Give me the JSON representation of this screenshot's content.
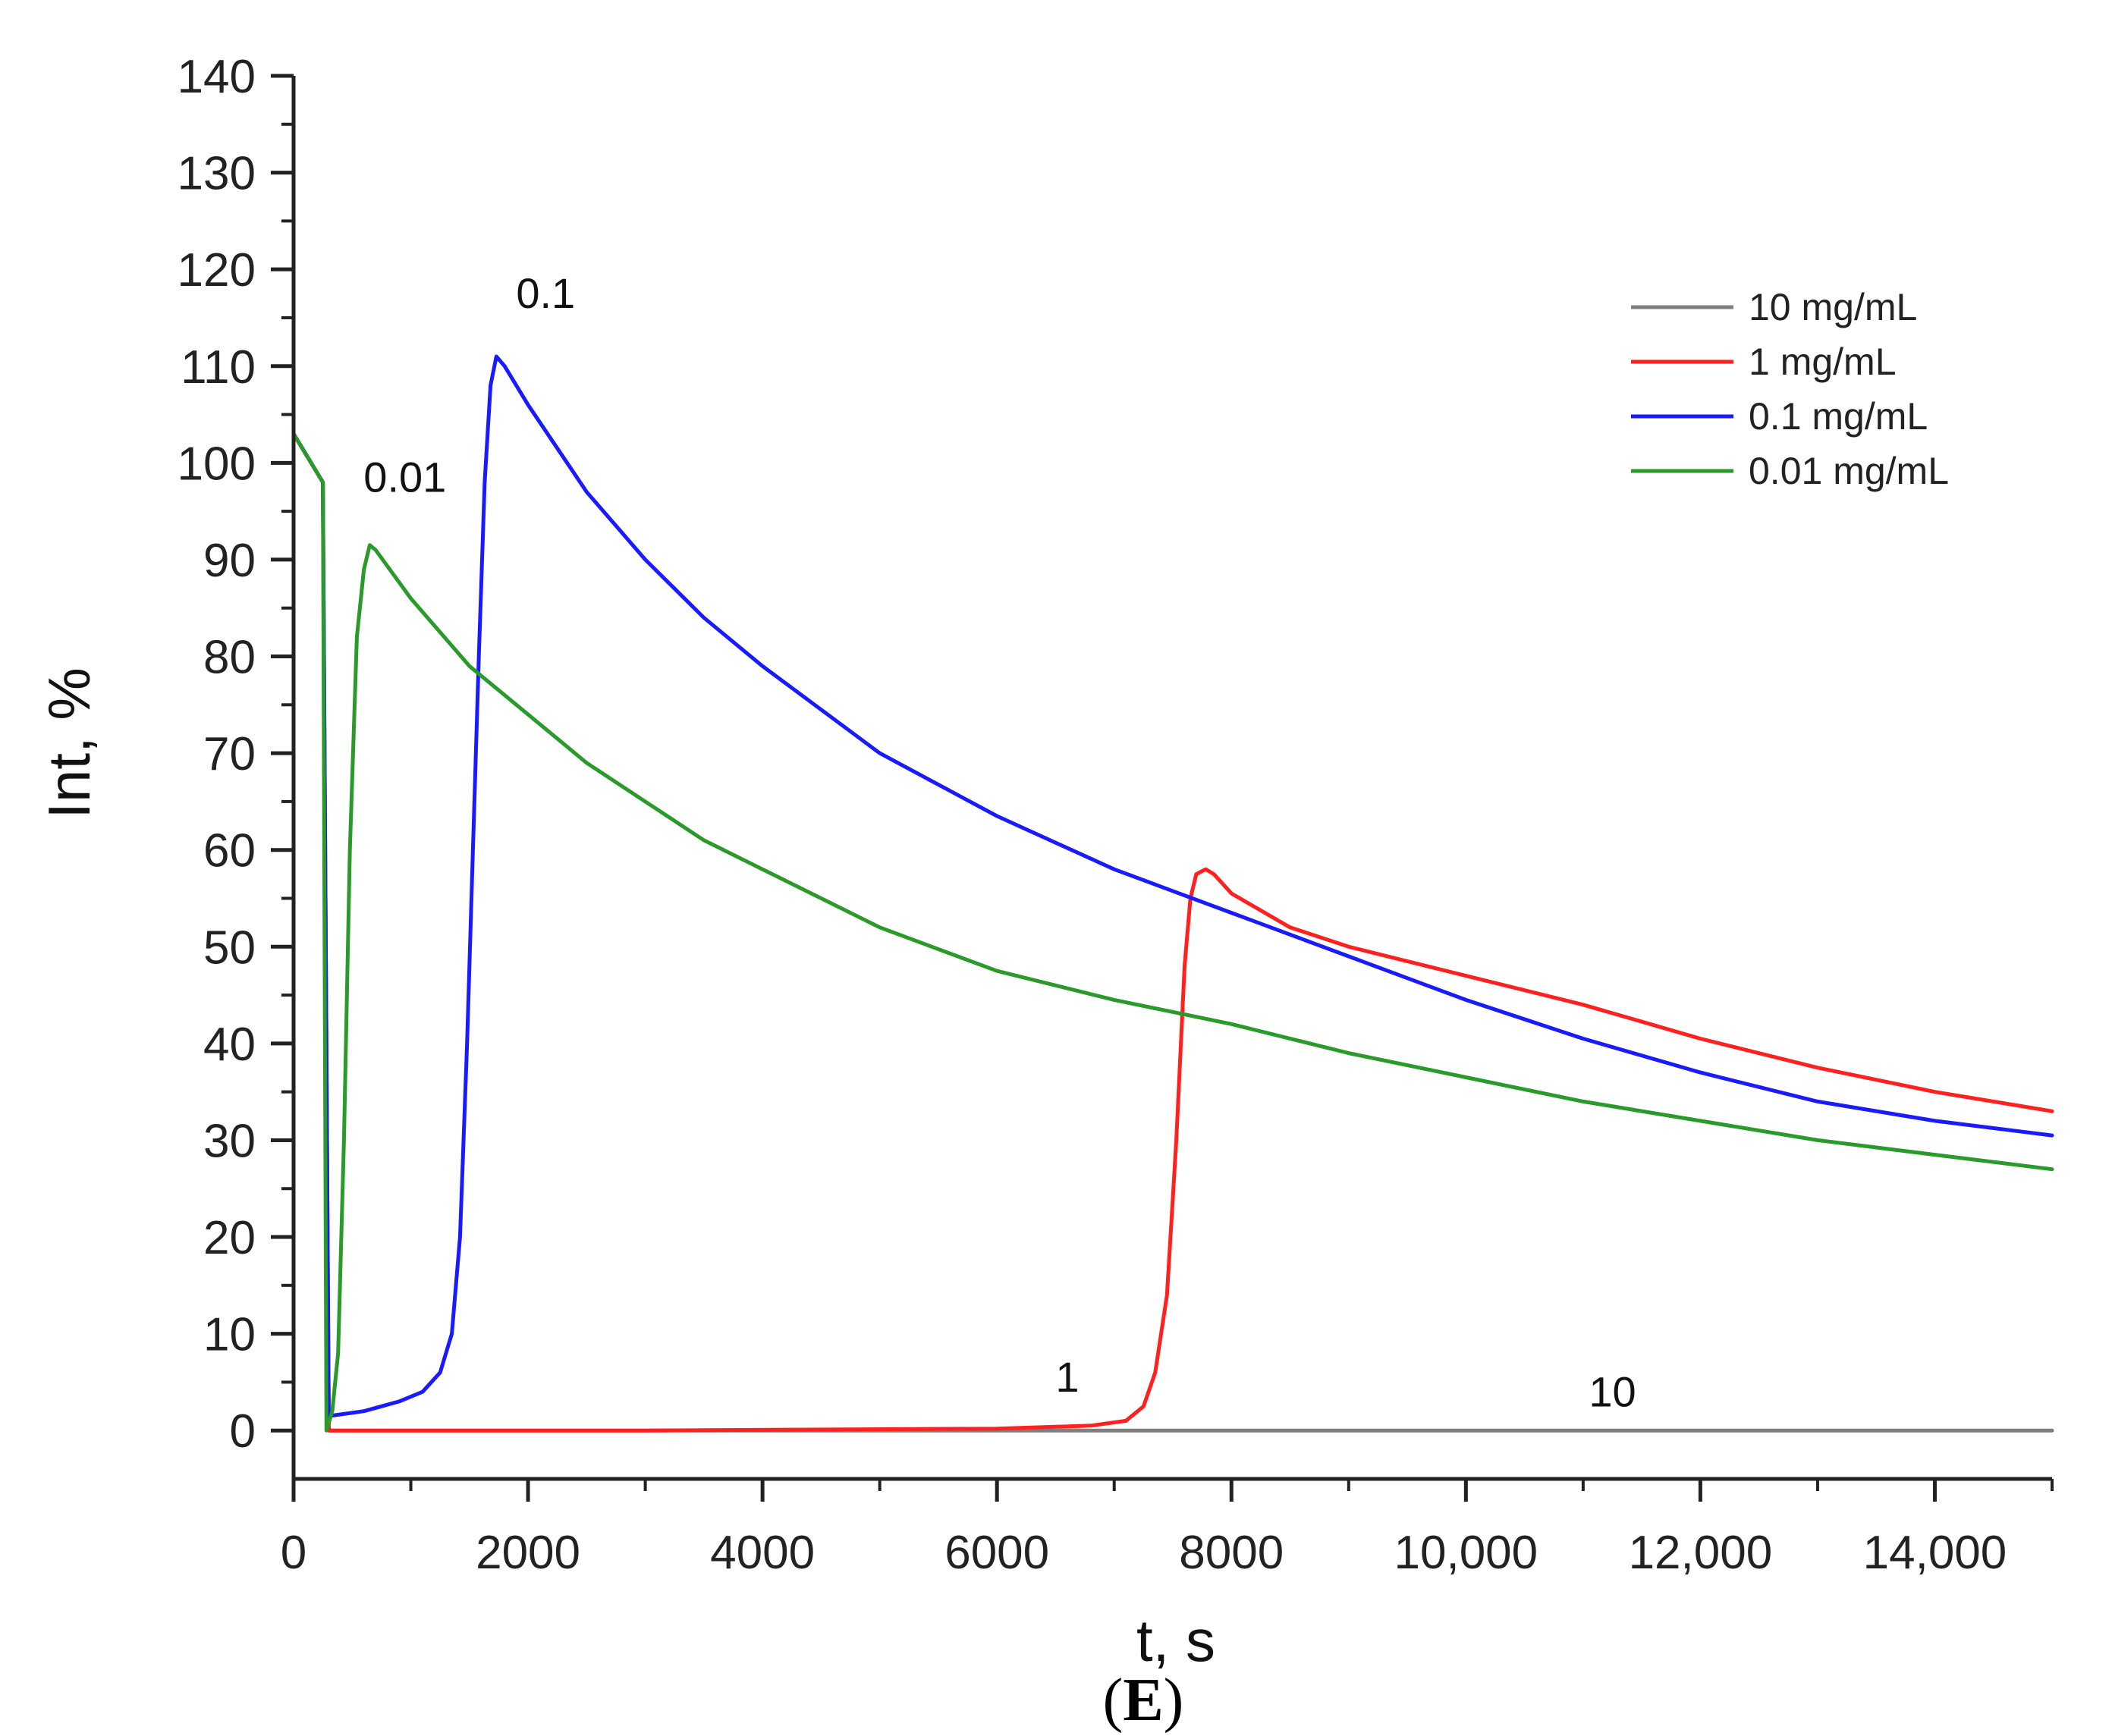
{
  "chart_data": {
    "type": "line",
    "xlabel": "t, s",
    "ylabel": "Int, %",
    "xlim": [
      0,
      15000
    ],
    "ylim": [
      -5,
      140
    ],
    "xticks": [
      0,
      2000,
      4000,
      6000,
      8000,
      10000,
      12000,
      14000
    ],
    "xtick_labels": [
      "0",
      "2000",
      "4000",
      "6000",
      "8000",
      "10,000",
      "12,000",
      "14,000"
    ],
    "yticks": [
      0,
      10,
      20,
      30,
      40,
      50,
      60,
      70,
      80,
      90,
      100,
      110,
      120,
      130,
      140
    ],
    "ytick_labels": [
      "0",
      "10",
      "20",
      "30",
      "40",
      "50",
      "60",
      "70",
      "80",
      "90",
      "100",
      "110",
      "120",
      "130",
      "140"
    ],
    "grid": false,
    "legend_position": "top-right",
    "series": [
      {
        "name": "10 mg/mL",
        "color": "#7f7f7f",
        "points": [
          [
            0,
            103
          ],
          [
            250,
            98
          ],
          [
            300,
            0
          ],
          [
            15000,
            0
          ]
        ]
      },
      {
        "name": "1 mg/mL",
        "color": "#ff2020",
        "points": [
          [
            0,
            103
          ],
          [
            250,
            98
          ],
          [
            300,
            0
          ],
          [
            3000,
            0
          ],
          [
            6000,
            0.2
          ],
          [
            6800,
            0.5
          ],
          [
            7100,
            1
          ],
          [
            7250,
            2.5
          ],
          [
            7350,
            6
          ],
          [
            7450,
            14
          ],
          [
            7530,
            30
          ],
          [
            7600,
            48
          ],
          [
            7650,
            55
          ],
          [
            7700,
            57.5
          ],
          [
            7780,
            58
          ],
          [
            7850,
            57.5
          ],
          [
            8000,
            55.5
          ],
          [
            8500,
            52
          ],
          [
            9000,
            50
          ],
          [
            10000,
            47
          ],
          [
            11000,
            44
          ],
          [
            12000,
            40.5
          ],
          [
            13000,
            37.5
          ],
          [
            14000,
            35
          ],
          [
            15000,
            33
          ]
        ]
      },
      {
        "name": "0.1 mg/mL",
        "color": "#1a1aff",
        "points": [
          [
            0,
            103
          ],
          [
            250,
            98
          ],
          [
            300,
            1.5
          ],
          [
            600,
            2
          ],
          [
            900,
            3
          ],
          [
            1100,
            4
          ],
          [
            1250,
            6
          ],
          [
            1350,
            10
          ],
          [
            1420,
            20
          ],
          [
            1480,
            40
          ],
          [
            1530,
            60
          ],
          [
            1580,
            80
          ],
          [
            1630,
            98
          ],
          [
            1680,
            108
          ],
          [
            1730,
            111
          ],
          [
            1800,
            110
          ],
          [
            2000,
            106
          ],
          [
            2500,
            97
          ],
          [
            3000,
            90
          ],
          [
            3500,
            84
          ],
          [
            4000,
            79
          ],
          [
            5000,
            70
          ],
          [
            6000,
            63.5
          ],
          [
            7000,
            58
          ],
          [
            8000,
            53.5
          ],
          [
            9000,
            49
          ],
          [
            10000,
            44.5
          ],
          [
            11000,
            40.5
          ],
          [
            12000,
            37
          ],
          [
            13000,
            34
          ],
          [
            14000,
            32
          ],
          [
            15000,
            30.5
          ]
        ]
      },
      {
        "name": "0.01 mg/mL",
        "color": "#2a9a2a",
        "points": [
          [
            0,
            103
          ],
          [
            250,
            98
          ],
          [
            280,
            0
          ],
          [
            330,
            2
          ],
          [
            380,
            8
          ],
          [
            430,
            30
          ],
          [
            480,
            60
          ],
          [
            540,
            82
          ],
          [
            600,
            89
          ],
          [
            650,
            91.5
          ],
          [
            700,
            91
          ],
          [
            1000,
            86
          ],
          [
            1500,
            79
          ],
          [
            2000,
            74
          ],
          [
            2500,
            69
          ],
          [
            3000,
            65
          ],
          [
            3500,
            61
          ],
          [
            4000,
            58
          ],
          [
            5000,
            52
          ],
          [
            6000,
            47.5
          ],
          [
            7000,
            44.5
          ],
          [
            8000,
            42
          ],
          [
            9000,
            39
          ],
          [
            10000,
            36.5
          ],
          [
            11000,
            34
          ],
          [
            12000,
            32
          ],
          [
            13000,
            30
          ],
          [
            14000,
            28.5
          ],
          [
            15000,
            27
          ]
        ]
      }
    ],
    "annotations": [
      {
        "text": "0.1",
        "x": 2150,
        "y": 116
      },
      {
        "text": "0.01",
        "x": 950,
        "y": 97
      },
      {
        "text": "1",
        "x": 6600,
        "y": 4
      },
      {
        "text": "10",
        "x": 11250,
        "y": 2.5
      }
    ]
  },
  "caption": {
    "open": "(",
    "letter": "E",
    "close": ")"
  }
}
